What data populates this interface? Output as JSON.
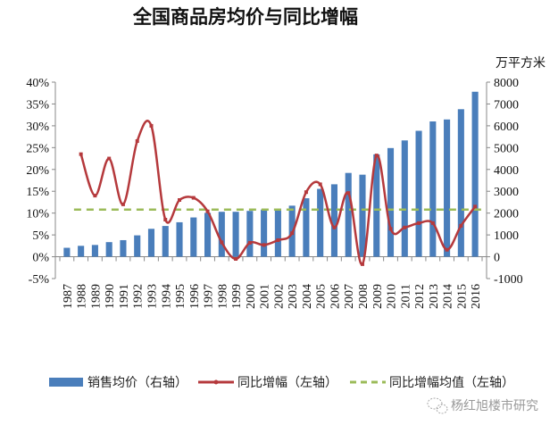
{
  "chart_data": {
    "type": "bar+line",
    "title": "全国商品房均价与同比增幅",
    "right_unit_label": "万平方米",
    "categories": [
      "1987",
      "1988",
      "1989",
      "1990",
      "1991",
      "1992",
      "1993",
      "1994",
      "1995",
      "1996",
      "1997",
      "1998",
      "1999",
      "2000",
      "2001",
      "2002",
      "2003",
      "2004",
      "2005",
      "2006",
      "2007",
      "2008",
      "2009",
      "2010",
      "2011",
      "2012",
      "2013",
      "2014",
      "2015",
      "2016"
    ],
    "series": [
      {
        "name": "销售均价（右轴）",
        "type": "bar",
        "axis": "right",
        "color": "#4a7ebb",
        "values": [
          410,
          500,
          540,
          670,
          760,
          980,
          1280,
          1410,
          1580,
          1800,
          2010,
          2060,
          2060,
          2100,
          2160,
          2200,
          2340,
          2680,
          3110,
          3320,
          3840,
          3760,
          4690,
          4980,
          5330,
          5770,
          6200,
          6290,
          6760,
          7560
        ]
      },
      {
        "name": "同比增幅（左轴）",
        "type": "line",
        "axis": "left",
        "color": "#b5393c",
        "values": [
          null,
          23.5,
          14.0,
          22.5,
          12.0,
          26.5,
          30.0,
          8.5,
          13.0,
          13.5,
          10.4,
          3.3,
          -0.5,
          3.2,
          2.7,
          3.8,
          5.4,
          14.8,
          16.6,
          6.7,
          14.6,
          -1.7,
          23.2,
          6.4,
          6.7,
          7.7,
          7.7,
          1.6,
          7.1,
          11.5
        ]
      },
      {
        "name": "同比增幅均值（左轴）",
        "type": "line-dashed",
        "axis": "left",
        "color": "#9bbb59",
        "value": 10.8
      }
    ],
    "left_axis": {
      "min": -5,
      "max": 40,
      "step": 5,
      "format": "percent",
      "tick_labels": [
        "-5%",
        "0%",
        "5%",
        "10%",
        "15%",
        "20%",
        "25%",
        "30%",
        "35%",
        "40%"
      ]
    },
    "right_axis": {
      "min": -1000,
      "max": 8000,
      "step": 1000,
      "tick_labels": [
        "-1000",
        "0",
        "1000",
        "2000",
        "3000",
        "4000",
        "5000",
        "6000",
        "7000",
        "8000"
      ]
    },
    "grid": false,
    "legend_position": "bottom"
  },
  "watermark": {
    "text": "杨红旭楼市研究",
    "icon": "wechat-icon"
  }
}
